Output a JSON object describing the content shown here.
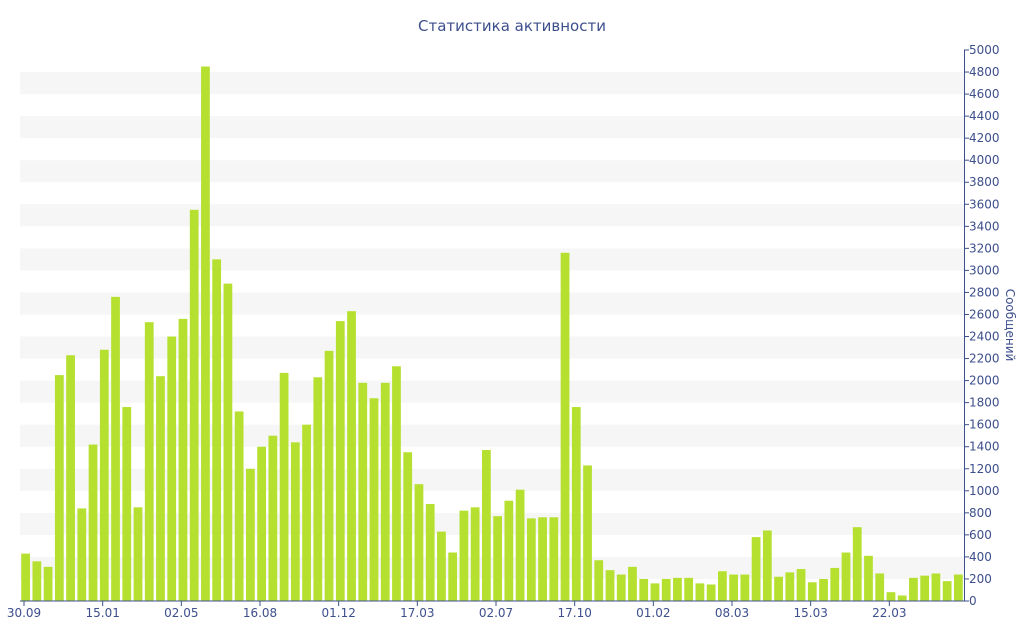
{
  "chart_data": {
    "type": "bar",
    "title": "Статистика активности",
    "xlabel": "",
    "ylabel": "Сообщений",
    "ylim": [
      0,
      5000
    ],
    "yticks": [
      0,
      200,
      400,
      600,
      800,
      1000,
      1200,
      1400,
      1600,
      1800,
      2000,
      2200,
      2400,
      2600,
      2800,
      3000,
      3200,
      3400,
      3600,
      3800,
      4000,
      4200,
      4400,
      4600,
      4800,
      5000
    ],
    "x_tick_labels": [
      {
        "label": "30.09",
        "index": 0
      },
      {
        "label": "15.01",
        "index": 7
      },
      {
        "label": "02.05",
        "index": 14
      },
      {
        "label": "16.08",
        "index": 21
      },
      {
        "label": "01.12",
        "index": 28
      },
      {
        "label": "17.03",
        "index": 35
      },
      {
        "label": "02.07",
        "index": 42
      },
      {
        "label": "17.10",
        "index": 49
      },
      {
        "label": "01.02",
        "index": 56
      },
      {
        "label": "08.03",
        "index": 63
      },
      {
        "label": "15.03",
        "index": 70
      },
      {
        "label": "22.03",
        "index": 77
      }
    ],
    "grid": "alternating horizontal bands",
    "y_axis_position": "right",
    "bar_color": "#b5e030",
    "values": [
      430,
      360,
      310,
      2050,
      2230,
      840,
      1420,
      2280,
      2760,
      1760,
      850,
      2530,
      2040,
      2400,
      2560,
      3550,
      4850,
      3100,
      2880,
      1720,
      1200,
      1400,
      1500,
      2070,
      1440,
      1600,
      2030,
      2270,
      2540,
      2630,
      1980,
      1840,
      1980,
      2130,
      1350,
      1060,
      880,
      630,
      440,
      820,
      850,
      1370,
      770,
      910,
      1010,
      750,
      760,
      760,
      3160,
      1760,
      1230,
      370,
      280,
      240,
      310,
      200,
      160,
      200,
      210,
      210,
      160,
      150,
      270,
      240,
      240,
      580,
      640,
      220,
      260,
      290,
      170,
      200,
      300,
      440,
      670,
      410,
      250,
      80,
      50,
      210,
      230,
      250,
      180,
      240
    ]
  }
}
